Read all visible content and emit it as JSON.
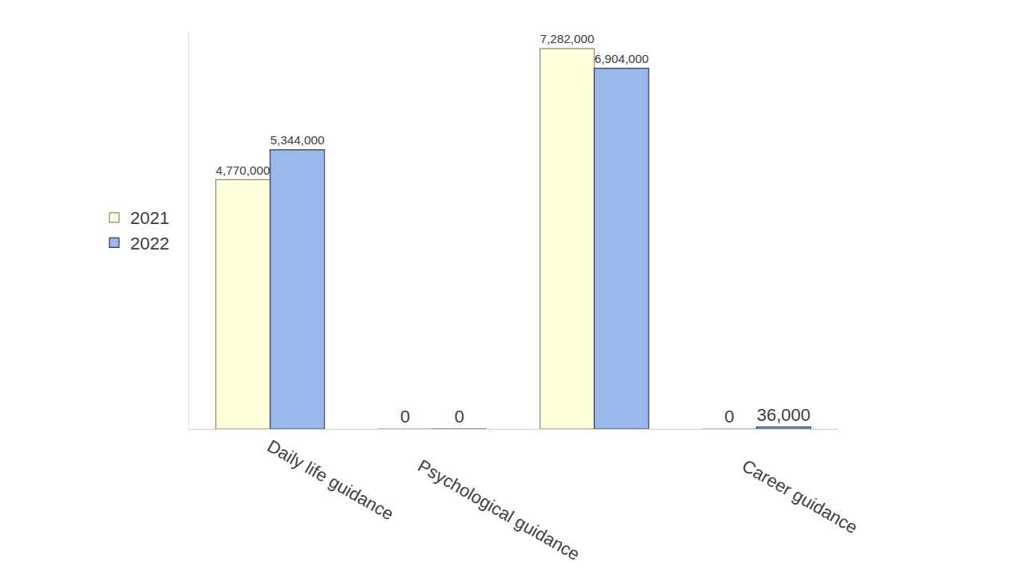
{
  "chart_data": {
    "type": "bar",
    "categories": [
      "Daily life guidance",
      "Psychological guidance",
      null,
      "Career guidance"
    ],
    "series": [
      {
        "name": "2021",
        "color": "#ffffdc",
        "values": [
          4770000,
          0,
          7282000,
          0
        ],
        "value_labels": [
          "4,770,000",
          "0",
          "7,282,000",
          "0"
        ]
      },
      {
        "name": "2022",
        "color": "#9ab8ea",
        "values": [
          5344000,
          0,
          6904000,
          36000
        ],
        "value_labels": [
          "5,344,000",
          "0",
          "6,904,000",
          "36,000"
        ]
      }
    ],
    "ylim": [
      0,
      7600000
    ],
    "grid": false,
    "legend": "left",
    "data_labels": true,
    "tick_labels": "x"
  }
}
